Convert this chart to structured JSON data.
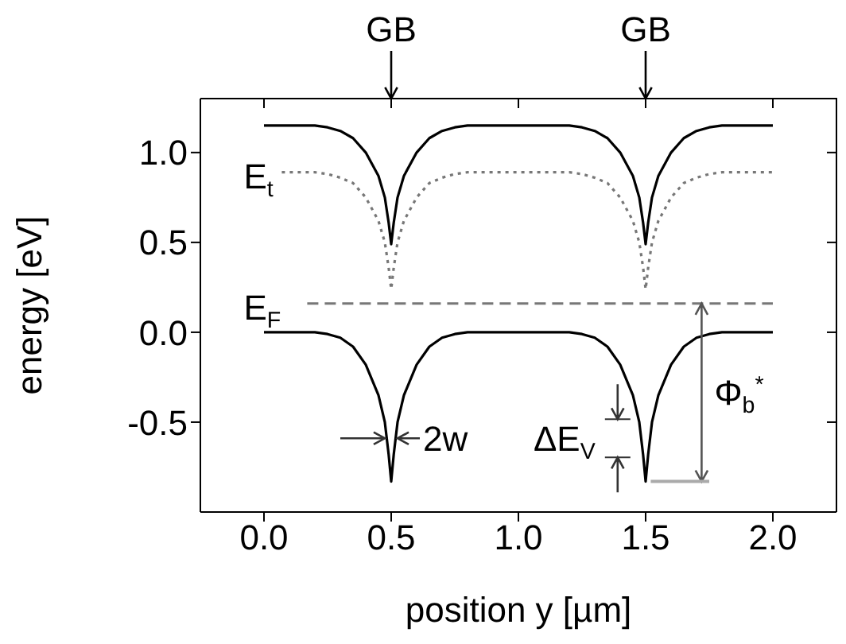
{
  "chart_data": {
    "type": "line",
    "xlabel": "position y [µm]",
    "ylabel": "energy [eV]",
    "x": [
      0,
      0.2,
      0.25,
      0.3,
      0.35,
      0.4,
      0.45,
      0.475,
      0.49,
      0.5,
      0.51,
      0.525,
      0.55,
      0.6,
      0.65,
      0.7,
      0.75,
      0.8,
      1.2,
      1.25,
      1.3,
      1.35,
      1.4,
      1.45,
      1.475,
      1.49,
      1.5,
      1.51,
      1.525,
      1.55,
      1.6,
      1.65,
      1.7,
      1.75,
      1.8,
      2.0
    ],
    "series": [
      {
        "color": "#000000",
        "line_style": "solid",
        "values": [
          1.15,
          1.15,
          1.14,
          1.12,
          1.08,
          1.0,
          0.87,
          0.75,
          0.61,
          0.49,
          0.61,
          0.75,
          0.87,
          1.0,
          1.08,
          1.12,
          1.14,
          1.15,
          1.15,
          1.14,
          1.12,
          1.08,
          1.0,
          0.87,
          0.75,
          0.61,
          0.49,
          0.61,
          0.75,
          0.87,
          1.0,
          1.08,
          1.12,
          1.14,
          1.15,
          1.15
        ]
      },
      {
        "color": "#777777",
        "line_style": "dotted",
        "x": [
          0.07,
          0.2,
          0.25,
          0.3,
          0.35,
          0.4,
          0.45,
          0.475,
          0.49,
          0.5,
          0.51,
          0.525,
          0.55,
          0.6,
          0.65,
          0.7,
          0.75,
          0.8,
          1.2,
          1.25,
          1.3,
          1.35,
          1.4,
          1.45,
          1.475,
          1.49,
          1.5,
          1.51,
          1.525,
          1.55,
          1.6,
          1.65,
          1.7,
          1.75,
          1.8,
          2.0
        ],
        "values": [
          0.89,
          0.89,
          0.88,
          0.86,
          0.83,
          0.75,
          0.62,
          0.5,
          0.36,
          0.24,
          0.36,
          0.5,
          0.62,
          0.75,
          0.83,
          0.86,
          0.88,
          0.89,
          0.89,
          0.88,
          0.86,
          0.83,
          0.75,
          0.62,
          0.5,
          0.36,
          0.24,
          0.36,
          0.5,
          0.62,
          0.75,
          0.83,
          0.86,
          0.88,
          0.89,
          0.89
        ]
      },
      {
        "color": "#000000",
        "line_style": "solid",
        "values": [
          0,
          0,
          -0.01,
          -0.03,
          -0.08,
          -0.18,
          -0.35,
          -0.5,
          -0.68,
          -0.83,
          -0.68,
          -0.5,
          -0.35,
          -0.18,
          -0.08,
          -0.03,
          -0.01,
          0,
          0,
          -0.01,
          -0.03,
          -0.08,
          -0.18,
          -0.35,
          -0.5,
          -0.68,
          -0.83,
          -0.68,
          -0.5,
          -0.35,
          -0.18,
          -0.08,
          -0.03,
          -0.01,
          0,
          0
        ]
      },
      {
        "color": "#777777",
        "line_style": "dashed",
        "x": [
          0.17,
          2.0
        ],
        "values": [
          0.16,
          0.16
        ]
      }
    ],
    "xlim": [
      -0.25,
      2.25
    ],
    "ylim": [
      -1.0,
      1.3
    ],
    "xticks": [
      {
        "value": 0,
        "label": "0.0"
      },
      {
        "value": 0.5,
        "label": "0.5"
      },
      {
        "value": 1,
        "label": "1.0"
      },
      {
        "value": 1.5,
        "label": "1.5"
      },
      {
        "value": 2,
        "label": "2.0"
      }
    ],
    "yticks": [
      {
        "value": -0.5,
        "label": "-0.5"
      },
      {
        "value": 0,
        "label": "0.0"
      },
      {
        "value": 0.5,
        "label": "0.5"
      },
      {
        "value": 1,
        "label": "1.0"
      }
    ],
    "annotations": [
      "GB",
      "GB",
      "E$_{t}$",
      "E$_{F}$",
      {
        "text": "2w",
        "x": 0.5,
        "y": -0.59
      },
      "ΔE$_{V}$",
      "Φ$_{b}$$^{*}$"
    ]
  }
}
